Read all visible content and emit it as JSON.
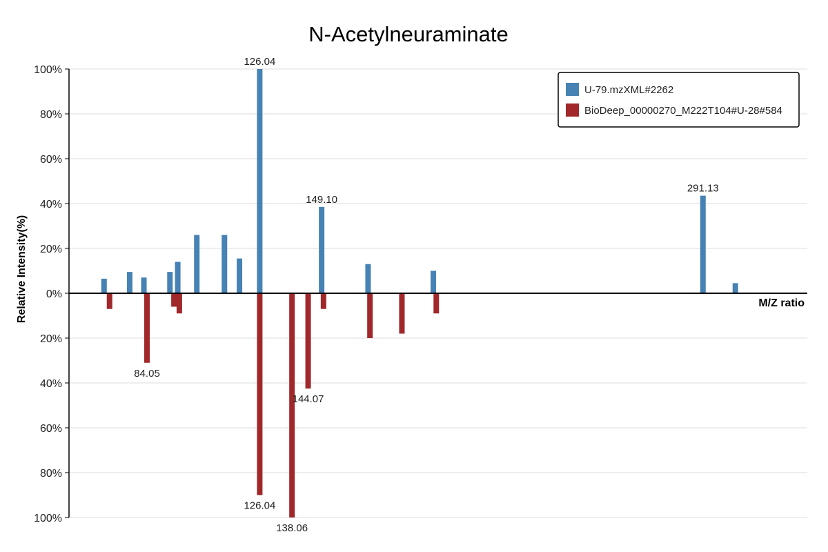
{
  "chart_data": {
    "type": "bar",
    "layout": "mirror",
    "title": "N-Acetylneuraminate",
    "xlabel": "M/Z ratio",
    "ylabel": "Relative Intensity(%)",
    "y_ticks": [
      "100%",
      "80%",
      "60%",
      "40%",
      "20%",
      "0%",
      "20%",
      "40%",
      "60%",
      "80%",
      "100%"
    ],
    "ylim": [
      -100,
      100
    ],
    "xlim": [
      55,
      330
    ],
    "grid": true,
    "legend": "top-right",
    "series": [
      {
        "name": "U-79.mzXML#2262",
        "color": "#4682b4",
        "direction": "up",
        "peaks": [
          {
            "mz": 68.05,
            "intensity": 6.5
          },
          {
            "mz": 77.6,
            "intensity": 9.5
          },
          {
            "mz": 82.9,
            "intensity": 7.0
          },
          {
            "mz": 92.6,
            "intensity": 9.5
          },
          {
            "mz": 95.5,
            "intensity": 14.0
          },
          {
            "mz": 102.6,
            "intensity": 26.0
          },
          {
            "mz": 112.9,
            "intensity": 26.0
          },
          {
            "mz": 126.04,
            "intensity": 100.0,
            "label": "126.04"
          },
          {
            "mz": 118.5,
            "intensity": 15.5
          },
          {
            "mz": 149.1,
            "intensity": 38.5,
            "label": "149.10"
          },
          {
            "mz": 166.4,
            "intensity": 13.0
          },
          {
            "mz": 190.7,
            "intensity": 10.0
          },
          {
            "mz": 291.13,
            "intensity": 43.5,
            "label": "291.13"
          },
          {
            "mz": 303.2,
            "intensity": 4.5
          }
        ]
      },
      {
        "name": "BioDeep_00000270_M222T104#U-28#584",
        "color": "#a0282a",
        "direction": "down",
        "peaks": [
          {
            "mz": 70.1,
            "intensity": 7.0
          },
          {
            "mz": 84.05,
            "intensity": 31.0,
            "label": "84.05"
          },
          {
            "mz": 94.1,
            "intensity": 6.0
          },
          {
            "mz": 96.1,
            "intensity": 9.0
          },
          {
            "mz": 126.04,
            "intensity": 90.0,
            "label": "126.04"
          },
          {
            "mz": 138.06,
            "intensity": 100.0,
            "label": "138.06"
          },
          {
            "mz": 144.07,
            "intensity": 42.5,
            "label": "144.07"
          },
          {
            "mz": 149.8,
            "intensity": 7.0
          },
          {
            "mz": 167.1,
            "intensity": 20.0
          },
          {
            "mz": 179.0,
            "intensity": 18.0
          },
          {
            "mz": 191.8,
            "intensity": 9.0
          }
        ]
      }
    ]
  }
}
